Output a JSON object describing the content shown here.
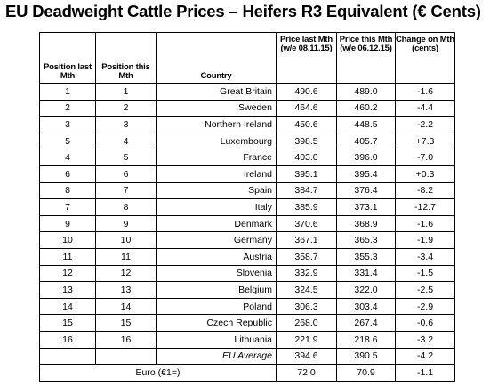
{
  "title": "EU Deadweight Cattle Prices – Heifers R3 Equivalent (€ Cents)",
  "columns": {
    "position_last": "Position last Mth",
    "position_this": "Position this Mth",
    "country": "Country",
    "price_last": "Price last Mth (w/e 08.11.15)",
    "price_this": "Price this Mth (w/e 06.12.15)",
    "change": "Change on Mth (cents)"
  },
  "rows": [
    {
      "pos_last": "1",
      "pos_this": "1",
      "country": "Great Britain",
      "price_last": "490.6",
      "price_this": "489.0",
      "change": "-1.6"
    },
    {
      "pos_last": "2",
      "pos_this": "2",
      "country": "Sweden",
      "price_last": "464.6",
      "price_this": "460.2",
      "change": "-4.4"
    },
    {
      "pos_last": "3",
      "pos_this": "3",
      "country": "Northern Ireland",
      "price_last": "450.6",
      "price_this": "448.5",
      "change": "-2.2"
    },
    {
      "pos_last": "5",
      "pos_this": "4",
      "country": "Luxembourg",
      "price_last": "398.5",
      "price_this": "405.7",
      "change": "+7.3"
    },
    {
      "pos_last": "4",
      "pos_this": "5",
      "country": "France",
      "price_last": "403.0",
      "price_this": "396.0",
      "change": "-7.0"
    },
    {
      "pos_last": "6",
      "pos_this": "6",
      "country": "Ireland",
      "price_last": "395.1",
      "price_this": "395.4",
      "change": "+0.3"
    },
    {
      "pos_last": "8",
      "pos_this": "7",
      "country": "Spain",
      "price_last": "384.7",
      "price_this": "376.4",
      "change": "-8.2"
    },
    {
      "pos_last": "7",
      "pos_this": "8",
      "country": "Italy",
      "price_last": "385.9",
      "price_this": "373.1",
      "change": "-12.7"
    },
    {
      "pos_last": "9",
      "pos_this": "9",
      "country": "Denmark",
      "price_last": "370.6",
      "price_this": "368.9",
      "change": "-1.6"
    },
    {
      "pos_last": "10",
      "pos_this": "10",
      "country": "Germany",
      "price_last": "367.1",
      "price_this": "365.3",
      "change": "-1.9"
    },
    {
      "pos_last": "11",
      "pos_this": "11",
      "country": "Austria",
      "price_last": "358.7",
      "price_this": "355.3",
      "change": "-3.4"
    },
    {
      "pos_last": "12",
      "pos_this": "12",
      "country": "Slovenia",
      "price_last": "332.9",
      "price_this": "331.4",
      "change": "-1.5"
    },
    {
      "pos_last": "13",
      "pos_this": "13",
      "country": "Belgium",
      "price_last": "324.5",
      "price_this": "322.0",
      "change": "-2.5"
    },
    {
      "pos_last": "14",
      "pos_this": "14",
      "country": "Poland",
      "price_last": "306.3",
      "price_this": "303.4",
      "change": "-2.9"
    },
    {
      "pos_last": "15",
      "pos_this": "15",
      "country": "Czech Republic",
      "price_last": "268.0",
      "price_this": "267.4",
      "change": "-0.6"
    },
    {
      "pos_last": "16",
      "pos_this": "16",
      "country": "Lithuania",
      "price_last": "221.9",
      "price_this": "218.6",
      "change": "-3.2"
    }
  ],
  "eu_average": {
    "label": "EU Average",
    "price_last": "394.6",
    "price_this": "390.5",
    "change": "-4.2"
  },
  "euro": {
    "label": "Euro (€1=)",
    "price_last": "72.0",
    "price_this": "70.9",
    "change": "-1.1"
  }
}
